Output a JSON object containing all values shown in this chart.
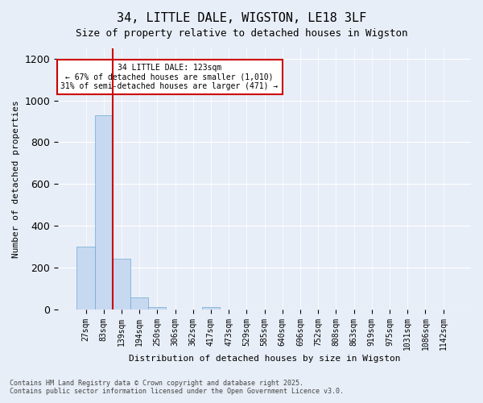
{
  "title_line1": "34, LITTLE DALE, WIGSTON, LE18 3LF",
  "title_line2": "Size of property relative to detached houses in Wigston",
  "xlabel": "Distribution of detached houses by size in Wigston",
  "ylabel": "Number of detached properties",
  "bin_labels": [
    "27sqm",
    "83sqm",
    "139sqm",
    "194sqm",
    "250sqm",
    "306sqm",
    "362sqm",
    "417sqm",
    "473sqm",
    "529sqm",
    "585sqm",
    "640sqm",
    "696sqm",
    "752sqm",
    "808sqm",
    "863sqm",
    "919sqm",
    "975sqm",
    "1031sqm",
    "1086sqm",
    "1142sqm"
  ],
  "bar_values": [
    300,
    930,
    240,
    55,
    10,
    0,
    0,
    10,
    0,
    0,
    0,
    0,
    0,
    0,
    0,
    0,
    0,
    0,
    0,
    0,
    0
  ],
  "bar_color": "#c6d9f0",
  "bar_edge_color": "#6fa8d4",
  "vline_color": "#cc0000",
  "vline_pos": 1.5,
  "annotation_title": "34 LITTLE DALE: 123sqm",
  "annotation_line1": "← 67% of detached houses are smaller (1,010)",
  "annotation_line2": "31% of semi-detached houses are larger (471) →",
  "annotation_box_color": "#cc0000",
  "ylim": [
    0,
    1250
  ],
  "yticks": [
    0,
    200,
    400,
    600,
    800,
    1000,
    1200
  ],
  "footer_line1": "Contains HM Land Registry data © Crown copyright and database right 2025.",
  "footer_line2": "Contains public sector information licensed under the Open Government Licence v3.0.",
  "bg_color": "#e8eef7",
  "plot_bg_color": "#e8eef7"
}
